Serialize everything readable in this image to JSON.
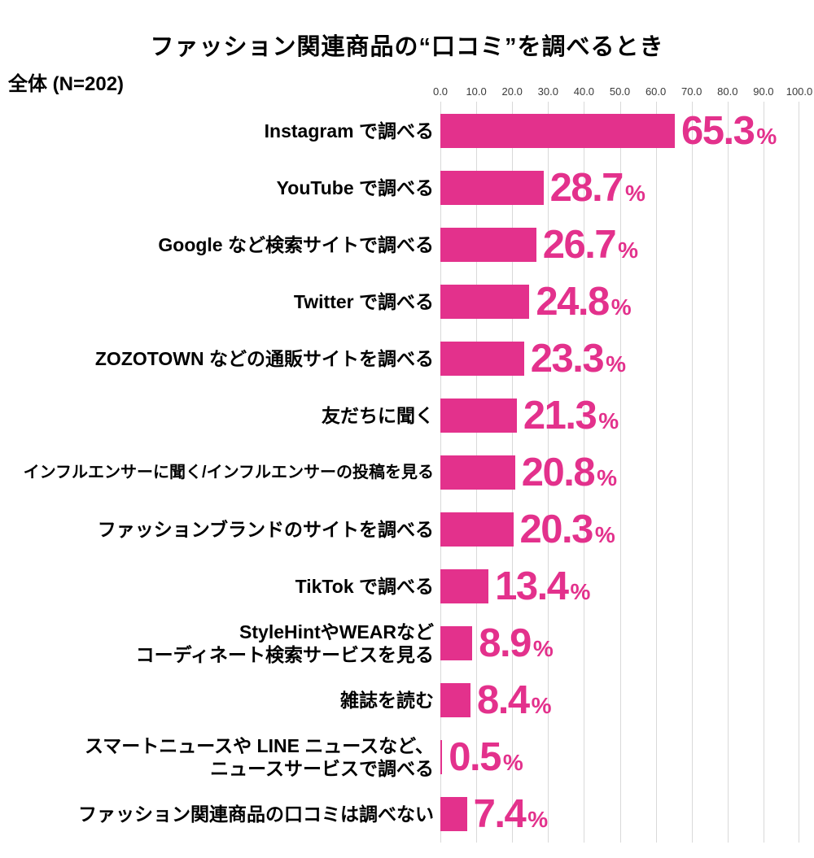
{
  "title": "ファッション関連商品の“口コミ”を調べるとき",
  "subtitle": "全体 (N=202)",
  "colors": {
    "bar": "#E3318C",
    "value_text": "#E3318C",
    "gridline": "#D9D9D9",
    "axis_text": "#3A3A3A",
    "category_text": "#000000",
    "background": "#FFFFFF"
  },
  "chart_data": {
    "type": "bar",
    "orientation": "horizontal",
    "title": "ファッション関連商品の“口コミ”を調べるとき",
    "group_label": "全体 (N=202)",
    "sample_size": 202,
    "xlim": [
      0,
      100
    ],
    "x_tick_labels": [
      "0.0",
      "10.0",
      "20.0",
      "30.0",
      "40.0",
      "50.0",
      "60.0",
      "70.0",
      "80.0",
      "90.0",
      "100.0"
    ],
    "grid": true,
    "legend_position": "none",
    "value_suffix": "%",
    "categories": [
      "Instagram で調べる",
      "YouTube で調べる",
      "Google など検索サイトで調べる",
      "Twitter で調べる",
      "ZOZOTOWN などの通販サイトを調べる",
      "友だちに聞く",
      "インフルエンサーに聞く/インフルエンサーの投稿を見る",
      "ファッションブランドのサイトを調べる",
      "TikTok で調べる",
      "StyleHintやWEARなど\nコーディネート検索サービスを見る",
      "雑誌を読む",
      "スマートニュースや LINE ニュースなど、\nニュースサービスで調べる",
      "ファッション関連商品の口コミは調べない"
    ],
    "values": [
      65.3,
      28.7,
      26.7,
      24.8,
      23.3,
      21.3,
      20.8,
      20.3,
      13.4,
      8.9,
      8.4,
      0.5,
      7.4
    ],
    "value_labels": [
      "65.3",
      "28.7",
      "26.7",
      "24.8",
      "23.3",
      "21.3",
      "20.8",
      "20.3",
      "13.4",
      "8.9",
      "8.4",
      "0.5",
      "7.4"
    ]
  }
}
